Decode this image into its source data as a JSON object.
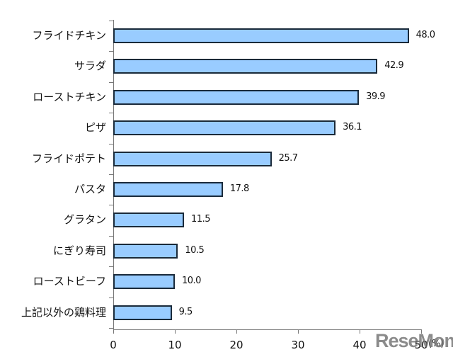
{
  "chart_data": {
    "type": "bar",
    "orientation": "horizontal",
    "title": "",
    "xlabel": "",
    "ylabel": "",
    "unit": "(%)",
    "categories": [
      "フライドチキン",
      "サラダ",
      "ローストチキン",
      "ピザ",
      "フライドポテト",
      "パスタ",
      "グラタン",
      "にぎり寿司",
      "ローストビーフ",
      "上記以外の鶏料理"
    ],
    "values": [
      48.0,
      42.9,
      39.9,
      36.1,
      25.7,
      17.8,
      11.5,
      10.5,
      10.0,
      9.5
    ],
    "value_labels": [
      "48.0",
      "42.9",
      "39.9",
      "36.1",
      "25.7",
      "17.8",
      "11.5",
      "10.5",
      "10.0",
      "9.5"
    ],
    "xlim": [
      0,
      50
    ],
    "xticks": [
      "0",
      "10",
      "20",
      "30",
      "40",
      "50"
    ],
    "grid": false,
    "legend": null,
    "bar_color": "#99ccff",
    "bar_edge_color": "#1a2a3a"
  },
  "watermark": "ReseMom"
}
